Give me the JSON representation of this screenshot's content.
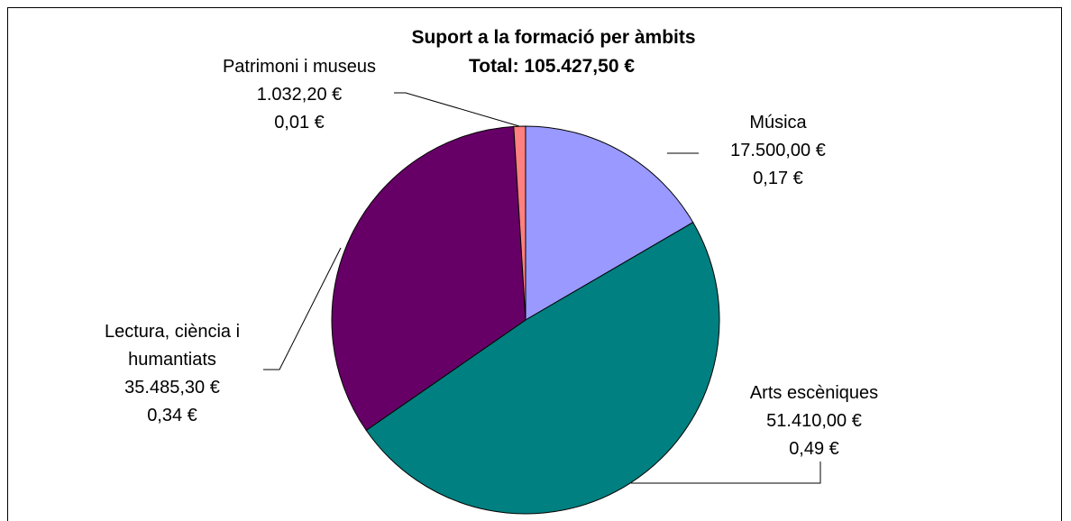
{
  "chart_data": {
    "type": "pie",
    "title": "Suport a la formació per àmbits",
    "subtitle": "Total: 105.427,50 €",
    "categories": [
      "Música",
      "Arts escèniques",
      "Lectura, ciència i humantiats",
      "Patrimoni i museus"
    ],
    "values": [
      17500.0,
      51410.0,
      35485.3,
      1032.2
    ],
    "value_labels": [
      "17.500,00 €",
      "51.410,00 €",
      "35.485,30 €",
      "1.032,20 €"
    ],
    "secondary_labels": [
      "0,17 €",
      "0,49 €",
      "0,34 €",
      "0,01 €"
    ],
    "label_lines": [
      [
        "Música",
        "17.500,00 €",
        "0,17 €"
      ],
      [
        "Arts escèniques",
        "51.410,00 €",
        "0,49 €"
      ],
      [
        "Lectura, ciència i",
        "humantiats",
        "35.485,30 €",
        "0,34 €"
      ],
      [
        "Patrimoni i museus",
        "1.032,20 €",
        "0,01 €"
      ]
    ],
    "colors": [
      "#9999ff",
      "#008080",
      "#660066",
      "#ff8080"
    ],
    "start_angle": "12 o'clock",
    "direction": "clockwise",
    "legend": "none",
    "border_color": "#000000"
  }
}
